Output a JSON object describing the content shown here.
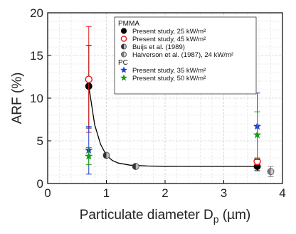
{
  "chart_data": {
    "type": "scatter",
    "xlabel_main": "Particulate diameter D",
    "xlabel_sub": "p",
    "xlabel_unit": " (µm)",
    "ylabel": "ARF (%)",
    "xlim": [
      0,
      4
    ],
    "ylim": [
      0,
      20
    ],
    "xticks": [
      "0",
      "1",
      "2",
      "3",
      "4"
    ],
    "yticks": [
      "0",
      "5",
      "10",
      "15",
      "20"
    ],
    "grid": true,
    "legend_position": "top-right",
    "legend_groups": [
      "PMMA",
      "PC"
    ],
    "series": [
      {
        "name": "Present study, 25 kW/m²",
        "group": "PMMA",
        "marker": "filled-circle",
        "color": "#000000",
        "points": [
          {
            "x": 0.7,
            "y": 11.4,
            "ylo": 6.5,
            "yhi": 16.2
          },
          {
            "x": 3.57,
            "y": 2.0,
            "ylo": 1.5,
            "yhi": 2.6
          }
        ]
      },
      {
        "name": "Present study, 45 kW/m²",
        "group": "PMMA",
        "marker": "open-circle",
        "color": "#e41a1c",
        "points": [
          {
            "x": 0.7,
            "y": 12.2,
            "ylo": 6.0,
            "yhi": 18.4
          },
          {
            "x": 3.57,
            "y": 2.6,
            "ylo": 2.2,
            "yhi": 3.0
          }
        ]
      },
      {
        "name": "Buijs et al. (1989)",
        "group": "PMMA",
        "marker": "half-circle",
        "color": "#555555",
        "points": [
          {
            "x": 1.0,
            "y": 3.3
          },
          {
            "x": 1.5,
            "y": 2.0
          }
        ]
      },
      {
        "name": "Halverson et al. (1987), 24 kW/m²",
        "group": "PMMA",
        "marker": "half-circle-gray",
        "color": "#888888",
        "points": [
          {
            "x": 3.8,
            "y": 1.4,
            "ylo": 0.8,
            "yhi": 2.0
          }
        ]
      },
      {
        "name": "Present study, 35 kW/m²",
        "group": "PC",
        "marker": "star",
        "color": "#1f3fd1",
        "points": [
          {
            "x": 0.7,
            "y": 3.9,
            "ylo": 1.1,
            "yhi": 6.7
          },
          {
            "x": 3.57,
            "y": 6.7,
            "ylo": 2.8,
            "yhi": 10.6
          }
        ]
      },
      {
        "name": "Present study, 50 kW/m²",
        "group": "PC",
        "marker": "star",
        "color": "#1a9a1a",
        "points": [
          {
            "x": 0.7,
            "y": 3.2,
            "ylo": 2.2,
            "yhi": 4.2
          },
          {
            "x": 3.57,
            "y": 5.7,
            "ylo": 3.0,
            "yhi": 8.4
          }
        ]
      }
    ],
    "fit_curve": {
      "x": [
        0.7,
        0.8,
        0.9,
        1.0,
        1.1,
        1.2,
        1.4,
        1.7,
        2.0,
        2.5,
        3.0,
        3.57
      ],
      "y": [
        11.4,
        6.9,
        4.6,
        3.3,
        2.7,
        2.4,
        2.15,
        2.05,
        2.02,
        2.0,
        2.0,
        2.0
      ]
    }
  }
}
